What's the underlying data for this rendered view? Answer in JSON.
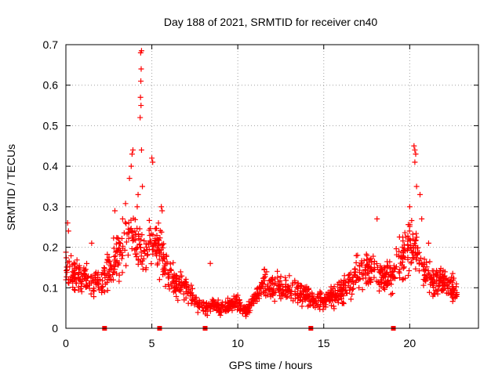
{
  "chart_data": {
    "type": "scatter",
    "title": "Day 188 of 2021, SRMTID for receiver cn40",
    "xlabel": "GPS time / hours",
    "ylabel": "SRMTID / TECUs",
    "xlim": [
      0,
      24
    ],
    "ylim": [
      0,
      0.7
    ],
    "xticks": [
      0,
      5,
      10,
      15,
      20
    ],
    "yticks": [
      0,
      0.1,
      0.2,
      0.3,
      0.4,
      0.5,
      0.6,
      0.7
    ],
    "xtick_labels": [
      "0",
      "5",
      "10",
      "15",
      "20"
    ],
    "ytick_labels": [
      "0",
      "0.1",
      "0.2",
      "0.3",
      "0.4",
      "0.5",
      "0.6",
      "0.7"
    ],
    "grid": true,
    "marker": "+",
    "color": "#ff0000",
    "gap_markers_x": [
      2.25,
      5.45,
      8.1,
      14.25,
      19.05
    ],
    "series": [
      {
        "name": "SRMTID",
        "profile": [
          [
            0.0,
            0.15
          ],
          [
            0.5,
            0.13
          ],
          [
            1.0,
            0.13
          ],
          [
            1.5,
            0.12
          ],
          [
            2.0,
            0.12
          ],
          [
            2.5,
            0.15
          ],
          [
            3.0,
            0.18
          ],
          [
            3.5,
            0.23
          ],
          [
            4.0,
            0.22
          ],
          [
            4.5,
            0.2
          ],
          [
            5.0,
            0.22
          ],
          [
            5.5,
            0.19
          ],
          [
            6.0,
            0.13
          ],
          [
            6.5,
            0.11
          ],
          [
            7.0,
            0.1
          ],
          [
            7.5,
            0.07
          ],
          [
            8.0,
            0.05
          ],
          [
            8.5,
            0.06
          ],
          [
            9.0,
            0.05
          ],
          [
            9.5,
            0.06
          ],
          [
            10.0,
            0.06
          ],
          [
            10.5,
            0.04
          ],
          [
            11.0,
            0.07
          ],
          [
            11.5,
            0.11
          ],
          [
            12.0,
            0.1
          ],
          [
            12.5,
            0.1
          ],
          [
            13.0,
            0.1
          ],
          [
            13.5,
            0.09
          ],
          [
            14.0,
            0.08
          ],
          [
            14.5,
            0.07
          ],
          [
            15.0,
            0.07
          ],
          [
            15.5,
            0.08
          ],
          [
            16.0,
            0.09
          ],
          [
            16.5,
            0.11
          ],
          [
            17.0,
            0.14
          ],
          [
            17.5,
            0.15
          ],
          [
            18.0,
            0.14
          ],
          [
            18.5,
            0.12
          ],
          [
            19.0,
            0.13
          ],
          [
            19.5,
            0.17
          ],
          [
            20.0,
            0.2
          ],
          [
            20.5,
            0.18
          ],
          [
            21.0,
            0.13
          ],
          [
            21.5,
            0.12
          ],
          [
            22.0,
            0.11
          ],
          [
            22.5,
            0.1
          ],
          [
            22.75,
            0.09
          ]
        ],
        "outliers": [
          [
            4.35,
            0.68
          ],
          [
            4.4,
            0.685
          ],
          [
            4.38,
            0.64
          ],
          [
            4.36,
            0.61
          ],
          [
            4.34,
            0.57
          ],
          [
            4.37,
            0.55
          ],
          [
            4.32,
            0.52
          ],
          [
            4.4,
            0.44
          ],
          [
            3.9,
            0.44
          ],
          [
            3.85,
            0.43
          ],
          [
            5.0,
            0.42
          ],
          [
            5.05,
            0.41
          ],
          [
            3.8,
            0.4
          ],
          [
            3.7,
            0.37
          ],
          [
            4.45,
            0.35
          ],
          [
            5.55,
            0.3
          ],
          [
            5.6,
            0.29
          ],
          [
            20.25,
            0.45
          ],
          [
            20.3,
            0.44
          ],
          [
            20.35,
            0.43
          ],
          [
            20.3,
            0.41
          ],
          [
            20.4,
            0.35
          ],
          [
            20.6,
            0.33
          ],
          [
            20.0,
            0.3
          ],
          [
            2.85,
            0.29
          ],
          [
            0.1,
            0.26
          ],
          [
            0.15,
            0.24
          ],
          [
            18.1,
            0.27
          ],
          [
            8.4,
            0.16
          ],
          [
            1.5,
            0.21
          ],
          [
            3.3,
            0.27
          ],
          [
            4.15,
            0.3
          ],
          [
            4.2,
            0.33
          ],
          [
            21.1,
            0.21
          ],
          [
            20.7,
            0.27
          ]
        ]
      }
    ]
  }
}
